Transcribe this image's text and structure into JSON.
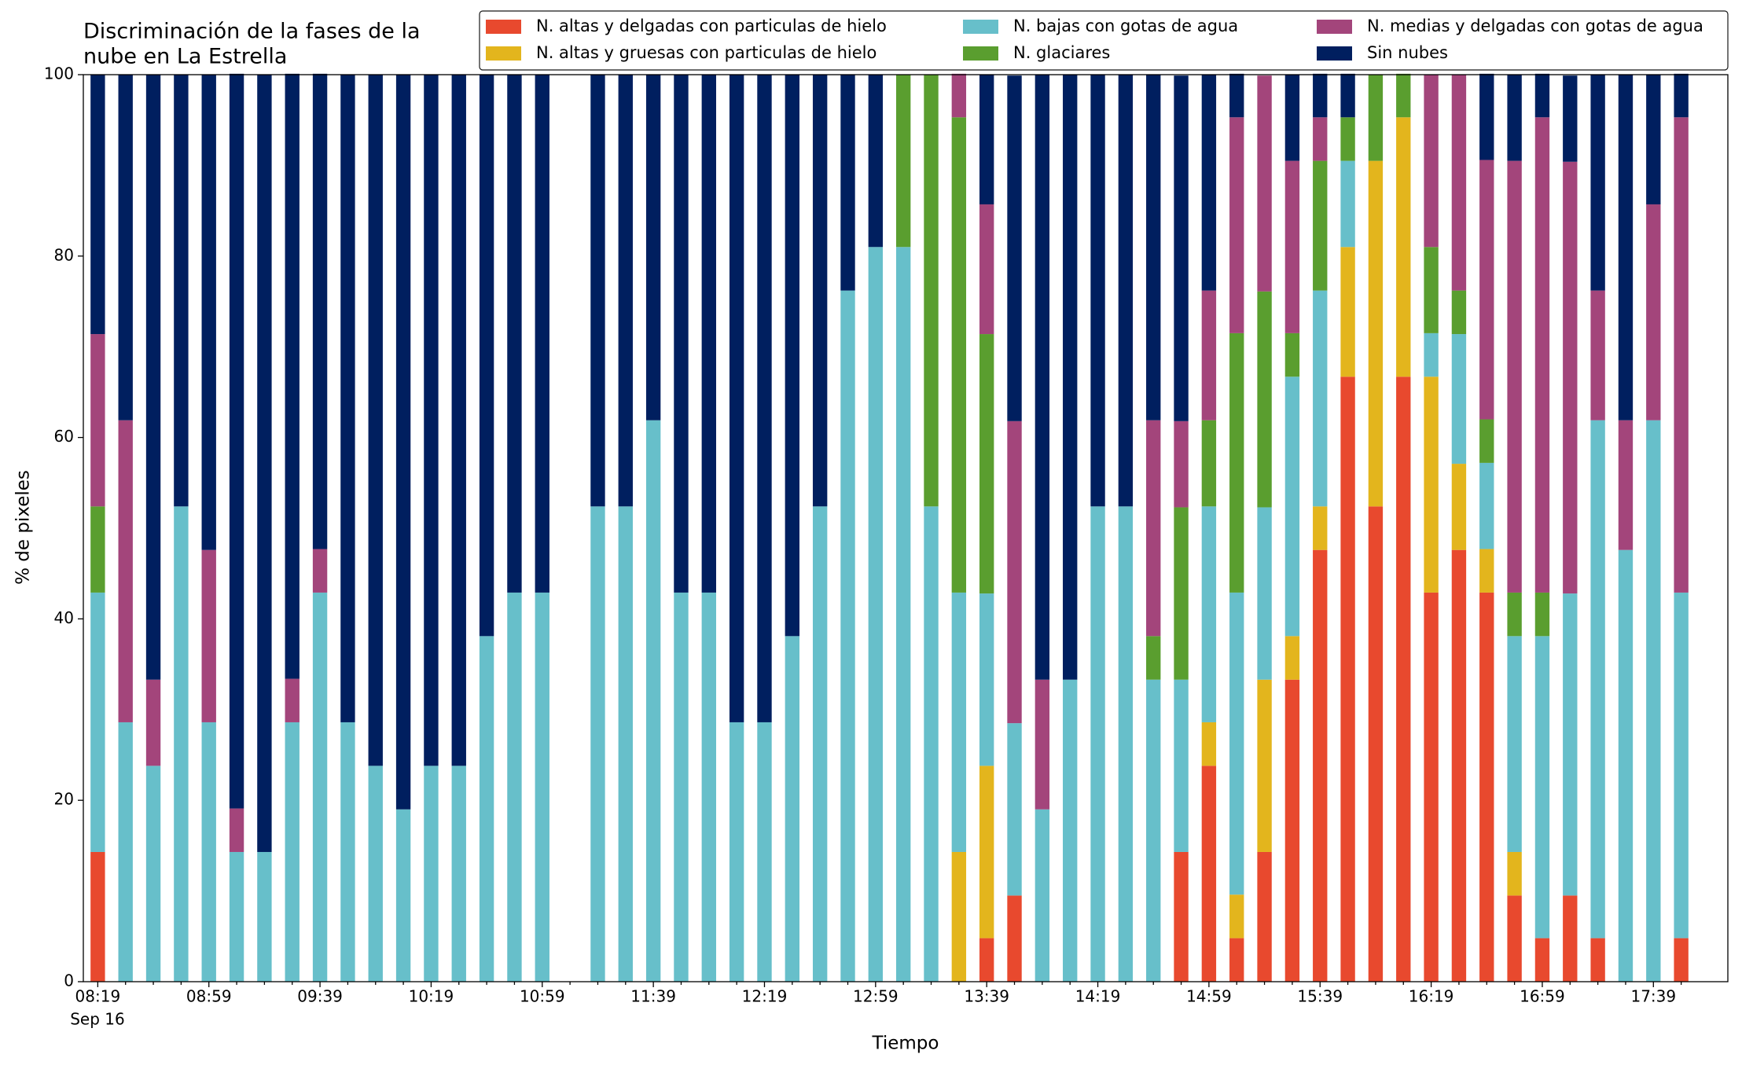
{
  "chart_data": {
    "type": "stacked_bar",
    "title": [
      "Discriminación de la fases de la",
      "nube en La Estrella"
    ],
    "x_label": "Tiempo",
    "x_sublabel": "Sep 16",
    "y_label": "% de pixeles",
    "categories": [
      "08:19",
      null,
      null,
      null,
      "08:59",
      null,
      null,
      null,
      "09:39",
      null,
      null,
      null,
      "10:19",
      null,
      null,
      null,
      "10:59",
      null,
      null,
      null,
      "11:39",
      null,
      null,
      null,
      "12:19",
      null,
      null,
      null,
      "12:59",
      null,
      null,
      null,
      "13:39",
      null,
      null,
      null,
      "14:19",
      null,
      null,
      null,
      "14:59",
      null,
      null,
      null,
      "15:39",
      null,
      null,
      null,
      "16:19",
      null,
      null,
      null,
      "16:59",
      null,
      null,
      null,
      "17:39",
      null
    ],
    "ylim": [
      0,
      100
    ],
    "yticks": [
      0,
      20,
      40,
      60,
      80,
      100
    ],
    "legend": "top-right",
    "series": [
      {
        "name": "N. altas y delgadas con particulas de hielo",
        "color": "#e8492e",
        "values": [
          14.3,
          0,
          0,
          0,
          0,
          0,
          0,
          0,
          0,
          0,
          0,
          0,
          0,
          0,
          0,
          0,
          0,
          null,
          0,
          0,
          0,
          0,
          0,
          0,
          0,
          0,
          0,
          0,
          0,
          0,
          0,
          0,
          4.8,
          9.5,
          0,
          0,
          0,
          0,
          0,
          14.3,
          23.8,
          4.8,
          14.3,
          33.3,
          47.6,
          66.7,
          52.4,
          66.7,
          42.9,
          47.6,
          42.9,
          9.5,
          4.8,
          9.5,
          4.8,
          0,
          0,
          4.8
        ]
      },
      {
        "name": "N. altas y gruesas con particulas de hielo",
        "color": "#e3b51d",
        "values": [
          0,
          0,
          0,
          0,
          0,
          0,
          0,
          0,
          0,
          0,
          0,
          0,
          0,
          0,
          0,
          0,
          0,
          null,
          0,
          0,
          0,
          0,
          0,
          0,
          0,
          0,
          0,
          0,
          0,
          0,
          0,
          14.3,
          19,
          0,
          0,
          0,
          0,
          0,
          0,
          0,
          4.8,
          4.8,
          19,
          4.8,
          4.8,
          14.3,
          38.1,
          28.6,
          23.8,
          9.5,
          4.8,
          4.8,
          0,
          0,
          0,
          0,
          0,
          0
        ]
      },
      {
        "name": "N. bajas con gotas de agua",
        "color": "#67bfca",
        "values": [
          28.6,
          28.6,
          23.8,
          52.4,
          28.6,
          14.3,
          14.3,
          28.6,
          42.9,
          28.6,
          23.8,
          19,
          23.8,
          23.8,
          38.1,
          42.9,
          42.9,
          null,
          52.4,
          52.4,
          61.9,
          42.9,
          42.9,
          28.6,
          28.6,
          38.1,
          52.4,
          76.2,
          81,
          81,
          52.4,
          28.6,
          19,
          19,
          19,
          33.3,
          52.4,
          52.4,
          33.3,
          19,
          23.8,
          33.3,
          19,
          28.6,
          23.8,
          9.5,
          0,
          0,
          4.8,
          14.3,
          9.5,
          23.8,
          33.3,
          33.3,
          57.1,
          47.6,
          61.9,
          38.1
        ]
      },
      {
        "name": "N. glaciares",
        "color": "#5a9e2f",
        "values": [
          9.5,
          0,
          0,
          0,
          0,
          0,
          0,
          0,
          0,
          0,
          0,
          0,
          0,
          0,
          0,
          0,
          0,
          null,
          0,
          0,
          0,
          0,
          0,
          0,
          0,
          0,
          0,
          0,
          0,
          19,
          47.6,
          52.4,
          28.6,
          0,
          0,
          0,
          0,
          0,
          4.8,
          19,
          9.5,
          28.6,
          23.8,
          4.8,
          14.3,
          4.8,
          9.5,
          4.8,
          9.5,
          4.8,
          4.8,
          4.8,
          4.8,
          0,
          0,
          0,
          0,
          0
        ]
      },
      {
        "name": "N. medias y delgadas con gotas de agua",
        "color": "#a3457b",
        "values": [
          19,
          33.3,
          9.5,
          0,
          19,
          4.8,
          0,
          4.8,
          4.8,
          0,
          0,
          0,
          0,
          0,
          0,
          0,
          0,
          null,
          0,
          0,
          0,
          0,
          0,
          0,
          0,
          0,
          0,
          0,
          0,
          0,
          0,
          4.8,
          14.3,
          33.3,
          14.3,
          0,
          0,
          0,
          23.8,
          9.5,
          14.3,
          23.8,
          23.8,
          19,
          4.8,
          0,
          0,
          0,
          19,
          23.8,
          28.6,
          47.6,
          52.4,
          47.6,
          14.3,
          14.3,
          23.8,
          52.4
        ]
      },
      {
        "name": "Sin nubes",
        "color": "#001f5f",
        "values": [
          28.6,
          38.1,
          66.7,
          47.6,
          52.4,
          81,
          85.7,
          66.7,
          52.4,
          71.4,
          76.2,
          81,
          76.2,
          76.2,
          61.9,
          57.1,
          57.1,
          null,
          47.6,
          47.6,
          38.1,
          57.1,
          57.1,
          71.4,
          71.4,
          61.9,
          47.6,
          23.8,
          19,
          0,
          0,
          0,
          14.3,
          38.1,
          66.7,
          66.7,
          47.6,
          47.6,
          38.1,
          38.1,
          23.8,
          4.8,
          0,
          9.5,
          4.8,
          4.8,
          0,
          0,
          0,
          0,
          9.5,
          9.5,
          4.8,
          9.5,
          23.8,
          38.1,
          14.3,
          4.8
        ]
      }
    ]
  }
}
